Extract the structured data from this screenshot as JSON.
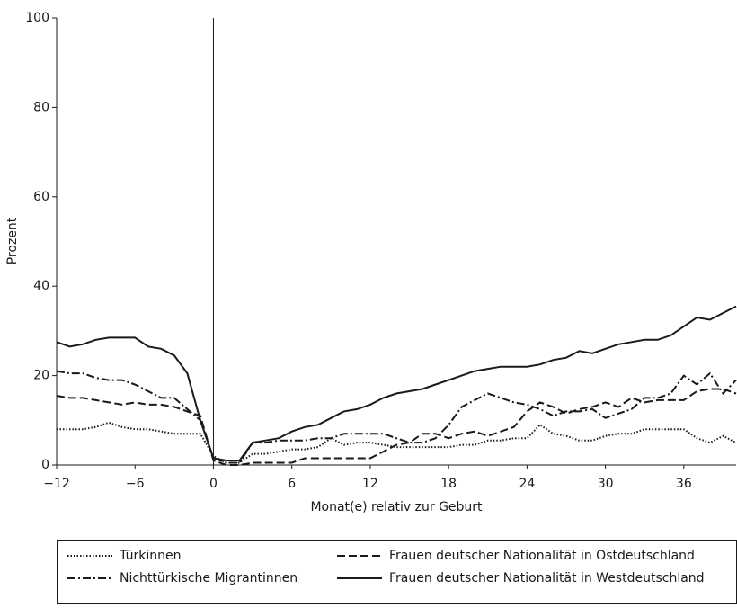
{
  "chart_data": {
    "type": "line",
    "x_label": "Monat(e) relativ zur Geburt",
    "y_label": "Prozent",
    "x": [
      -12,
      -11,
      -10,
      -9,
      -8,
      -7,
      -6,
      -5,
      -4,
      -3,
      -2,
      -1,
      0,
      1,
      2,
      3,
      4,
      5,
      6,
      7,
      8,
      9,
      10,
      11,
      12,
      13,
      14,
      15,
      16,
      17,
      18,
      19,
      20,
      21,
      22,
      23,
      24,
      25,
      26,
      27,
      28,
      29,
      30,
      31,
      32,
      33,
      34,
      35,
      36,
      37,
      38,
      39,
      40
    ],
    "xlim": [
      -12,
      40
    ],
    "ylim": [
      0,
      100
    ],
    "xticks": [
      {
        "value": -12,
        "label": "−12"
      },
      {
        "value": -6,
        "label": "−6"
      },
      0,
      6,
      12,
      18,
      24,
      30,
      36
    ],
    "yticks": [
      0,
      20,
      40,
      60,
      80,
      100
    ],
    "vline": 0,
    "grid": false,
    "series": [
      {
        "name": "Türkinnen",
        "color": "#1a1a1a",
        "dash": "1.5 2",
        "values": [
          8,
          8,
          8,
          8.5,
          9.5,
          8.5,
          8,
          8,
          7.5,
          7,
          7,
          7,
          2,
          0.5,
          0.5,
          2.5,
          2.5,
          3,
          3.5,
          3.5,
          4,
          6,
          4.5,
          5,
          5,
          4.5,
          4,
          4,
          4,
          4,
          4,
          4.5,
          4.5,
          5.5,
          5.5,
          6,
          6,
          9,
          7,
          6.5,
          5.5,
          5.5,
          6.5,
          7,
          7,
          8,
          8,
          8,
          8,
          6,
          5,
          6.5,
          5
        ]
      },
      {
        "name": "Frauen deutscher Nationalität in Ostdeutschland",
        "color": "#1a1a1a",
        "dash": "9 4",
        "values": [
          15.5,
          15,
          15,
          14.5,
          14,
          13.5,
          14,
          13.5,
          13.5,
          13,
          12,
          11,
          1,
          0,
          0,
          0.5,
          0.5,
          0.5,
          0.5,
          1.5,
          1.5,
          1.5,
          1.5,
          1.5,
          1.5,
          3,
          4.5,
          5,
          7,
          7,
          6,
          7,
          7.5,
          6.5,
          7.5,
          8.5,
          12,
          14,
          13,
          11.5,
          12.5,
          13,
          14,
          13,
          15,
          14,
          14.5,
          14.5,
          14.5,
          16.5,
          17,
          17,
          16
        ]
      },
      {
        "name": "Nichttürkische Migrantinnen",
        "color": "#1a1a1a",
        "dash": "9 3 2 3",
        "values": [
          21,
          20.5,
          20.5,
          19.5,
          19,
          19,
          18,
          16.5,
          15,
          15,
          12.5,
          10,
          1.5,
          0.5,
          0.5,
          5,
          5,
          5.5,
          5.5,
          5.5,
          6,
          6,
          7,
          7,
          7,
          7,
          6,
          5,
          5,
          6,
          9,
          13,
          14.5,
          16,
          15,
          14,
          13.5,
          12.5,
          11,
          12,
          12,
          12.5,
          10.5,
          11.5,
          12.5,
          15,
          15,
          16,
          20,
          18,
          20.5,
          16,
          19
        ]
      },
      {
        "name": "Frauen deutscher Nationalität in Westdeutschland",
        "color": "#1a1a1a",
        "dash": "none",
        "values": [
          27.5,
          26.5,
          27,
          28,
          28.5,
          28.5,
          28.5,
          26.5,
          26,
          24.5,
          20.5,
          10,
          1.5,
          1,
          1,
          5,
          5.5,
          6,
          7.5,
          8.5,
          9,
          10.5,
          12,
          12.5,
          13.5,
          15,
          16,
          16.5,
          17,
          18,
          19,
          20,
          21,
          21.5,
          22,
          22,
          22,
          22.5,
          23.5,
          24,
          25.5,
          25,
          26,
          27,
          27.5,
          28,
          28,
          29,
          31,
          33,
          32.5,
          34,
          35.5
        ]
      }
    ]
  }
}
